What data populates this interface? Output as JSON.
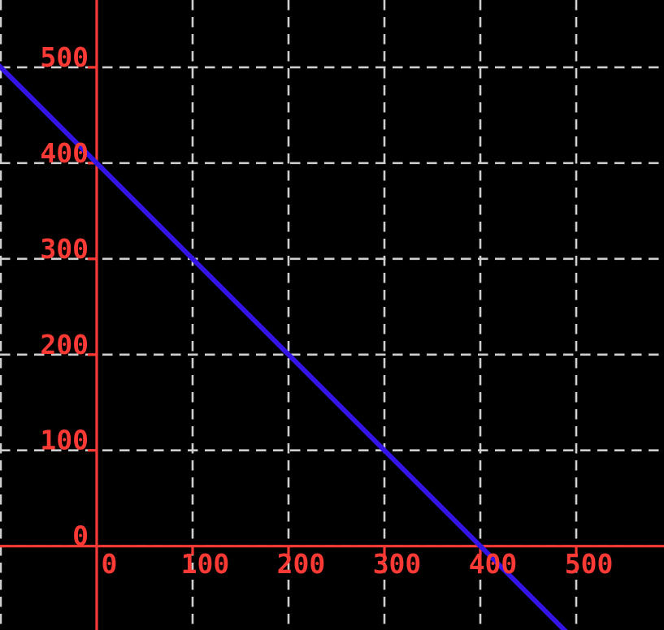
{
  "chart_data": {
    "type": "line",
    "title": "",
    "xlabel": "",
    "ylabel": "",
    "x_ticks": [
      0,
      100,
      200,
      300,
      400,
      500
    ],
    "x_tick_labels": [
      "0",
      "100",
      "200",
      "300",
      "400",
      "500"
    ],
    "y_ticks": [
      0,
      100,
      200,
      300,
      400,
      500
    ],
    "y_tick_labels": [
      "0",
      "100",
      "200",
      "300",
      "400",
      "500"
    ],
    "grid_x": [
      -100,
      0,
      100,
      200,
      300,
      400,
      500
    ],
    "grid_y": [
      0,
      100,
      200,
      300,
      400,
      500
    ],
    "xlim": [
      -100.8,
      591.5
    ],
    "ylim": [
      -87.6,
      570.3
    ],
    "grid_style": "dashed",
    "legend": "none",
    "background": "#000000",
    "gridline_color": "#cfcfcf",
    "tick_label_color": "#fb3a35",
    "axes": {
      "color": "#fb3a35",
      "x_axis_y": 0,
      "y_axis_x": 0
    },
    "series": [
      {
        "name": "y = 400 - x",
        "slope": -1,
        "intercept": 400,
        "color": "#3214e6",
        "x": [
          -102,
          490
        ],
        "y": [
          502,
          -90
        ],
        "key_points": [
          [
            0,
            400
          ],
          [
            100,
            300
          ],
          [
            200,
            200
          ],
          [
            300,
            100
          ],
          [
            400,
            0
          ]
        ]
      }
    ]
  }
}
